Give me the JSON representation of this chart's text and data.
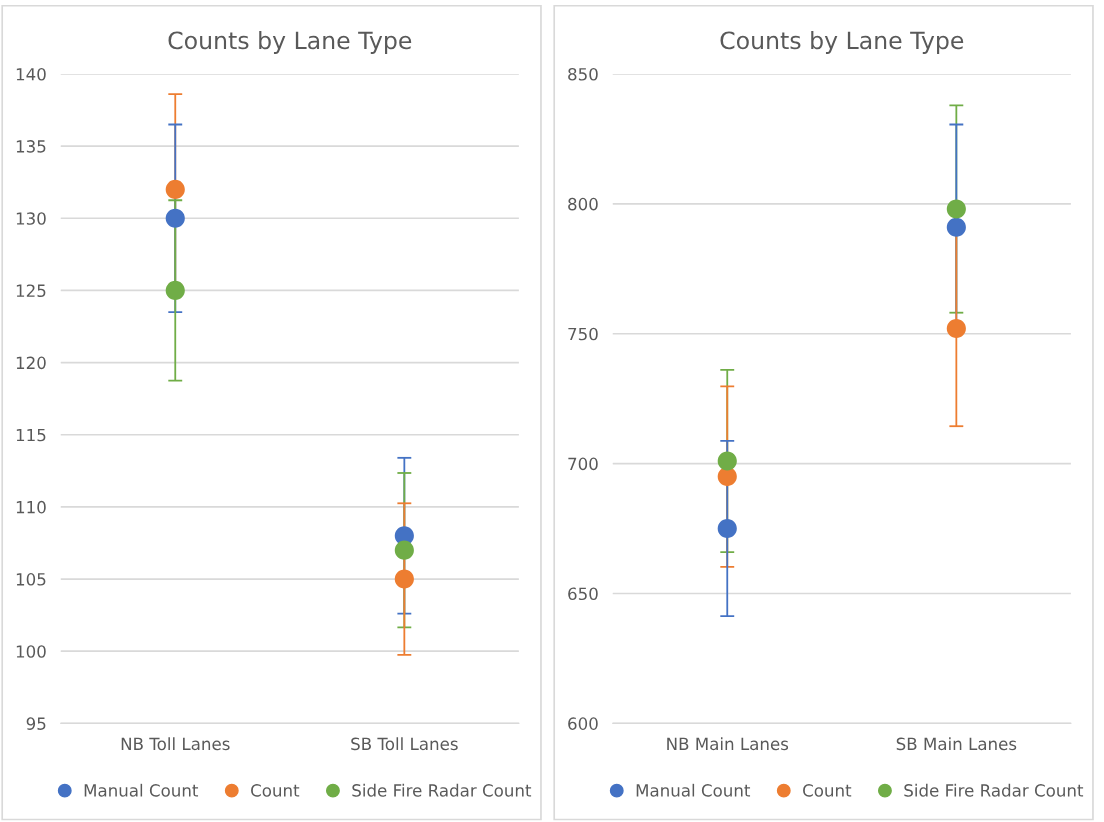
{
  "chart_data": [
    {
      "type": "scatter",
      "title": "Counts by Lane Type",
      "categories": [
        "NB Toll Lanes",
        "SB Toll Lanes"
      ],
      "ylim": [
        95,
        140
      ],
      "yticks": [
        95,
        100,
        105,
        110,
        115,
        120,
        125,
        130,
        135,
        140
      ],
      "grid": "y",
      "legend": "bottom",
      "marker": "circle",
      "series": [
        {
          "name": "Manual Count",
          "color": "#4472c4",
          "values": [
            130,
            108
          ],
          "errors": [
            6.5,
            5.4
          ]
        },
        {
          "name": "Count",
          "color": "#ed7d31",
          "values": [
            132,
            105
          ],
          "errors": [
            6.6,
            5.25
          ]
        },
        {
          "name": "Side Fire Radar Count",
          "color": "#70ad47",
          "values": [
            125,
            107
          ],
          "errors": [
            6.25,
            5.35
          ]
        }
      ]
    },
    {
      "type": "scatter",
      "title": "Counts by Lane Type",
      "categories": [
        "NB Main Lanes",
        "SB Main Lanes"
      ],
      "ylim": [
        600,
        850
      ],
      "yticks": [
        600,
        650,
        700,
        750,
        800,
        850
      ],
      "grid": "y",
      "legend": "bottom",
      "marker": "circle",
      "series": [
        {
          "name": "Manual Count",
          "color": "#4472c4",
          "values": [
            675,
            791
          ],
          "errors": [
            33.75,
            39.55
          ]
        },
        {
          "name": "Count",
          "color": "#ed7d31",
          "values": [
            695,
            752
          ],
          "errors": [
            34.75,
            37.6
          ]
        },
        {
          "name": "Side Fire Radar Count",
          "color": "#70ad47",
          "values": [
            701,
            798
          ],
          "errors": [
            35.05,
            39.9
          ]
        }
      ]
    }
  ]
}
